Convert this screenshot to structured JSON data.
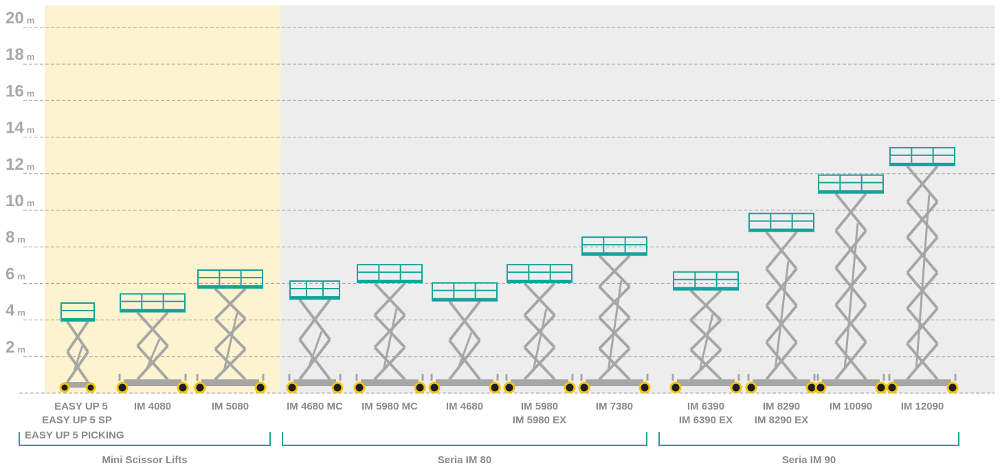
{
  "chart_data": {
    "type": "bar",
    "y_unit": "m",
    "ylim": [
      0,
      20
    ],
    "y_ticks": [
      2,
      4,
      6,
      8,
      10,
      12,
      14,
      16,
      18,
      20
    ],
    "grid": true,
    "colors": {
      "platform": "#14a39b",
      "scissor": "#a6a6a6",
      "wheel": "#f5c400",
      "highlight_band": "#fdf3cf",
      "background_band": "#ededed",
      "group_bracket": "#14a39b"
    },
    "models": [
      {
        "labels": [
          "EASY UP 5",
          "EASY UP 5 SP"
        ],
        "height": 4.1,
        "group": 0,
        "size": "small"
      },
      {
        "labels": [
          "IM 4080"
        ],
        "height": 4.6,
        "group": 0,
        "size": "normal"
      },
      {
        "labels": [
          "IM 5080"
        ],
        "height": 5.9,
        "group": 0,
        "size": "normal"
      },
      {
        "labels": [
          "IM 4680 MC"
        ],
        "height": 5.3,
        "group": 1,
        "size": "narrow"
      },
      {
        "labels": [
          "IM 5980 MC"
        ],
        "height": 6.2,
        "group": 1,
        "size": "normal"
      },
      {
        "labels": [
          "IM 4680"
        ],
        "height": 5.2,
        "group": 1,
        "size": "normal"
      },
      {
        "labels": [
          "IM 5980",
          "IM 5980 EX"
        ],
        "height": 6.2,
        "group": 1,
        "size": "normal"
      },
      {
        "labels": [
          "IM 7380"
        ],
        "height": 7.7,
        "group": 1,
        "size": "normal"
      },
      {
        "labels": [
          "IM 6390",
          "IM 6390 EX"
        ],
        "height": 5.8,
        "group": 2,
        "size": "normal"
      },
      {
        "labels": [
          "IM 8290",
          "IM 8290 EX"
        ],
        "height": 9.0,
        "group": 2,
        "size": "normal"
      },
      {
        "labels": [
          "IM 10090"
        ],
        "height": 11.1,
        "group": 2,
        "size": "normal"
      },
      {
        "labels": [
          "IM 12090"
        ],
        "height": 12.6,
        "group": 2,
        "size": "normal"
      }
    ],
    "extra_label": "EASY UP 5 PICKING",
    "groups": [
      "Mini Scissor Lifts",
      "Seria IM 80",
      "Seria IM 90"
    ]
  }
}
